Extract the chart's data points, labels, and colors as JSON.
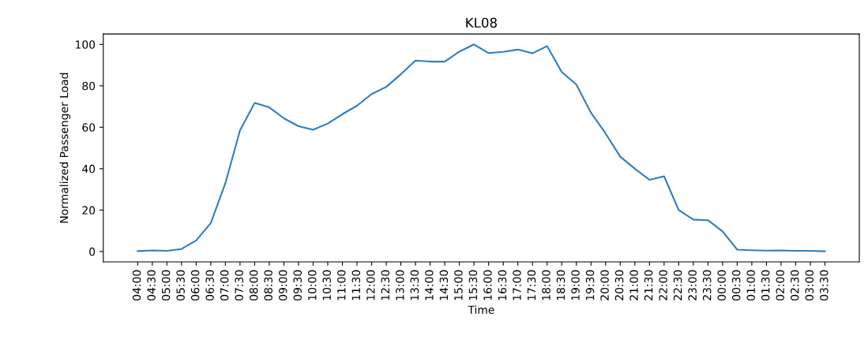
{
  "chart_data": {
    "type": "line",
    "title": "KL08",
    "xlabel": "Time",
    "ylabel": "Normalized Passenger Load",
    "categories": [
      "04:00",
      "04:30",
      "05:00",
      "05:30",
      "06:00",
      "06:30",
      "07:00",
      "07:30",
      "08:00",
      "08:30",
      "09:00",
      "09:30",
      "10:00",
      "10:30",
      "11:00",
      "11:30",
      "12:00",
      "12:30",
      "13:00",
      "13:30",
      "14:00",
      "14:30",
      "15:00",
      "15:30",
      "16:00",
      "16:30",
      "17:00",
      "17:30",
      "18:00",
      "18:30",
      "19:00",
      "19:30",
      "20:00",
      "20:30",
      "21:00",
      "21:30",
      "22:00",
      "22:30",
      "23:00",
      "23:30",
      "00:00",
      "00:30",
      "01:00",
      "01:30",
      "02:00",
      "02:30",
      "03:00",
      "03:30"
    ],
    "series": [
      {
        "color": "#2e7ebc",
        "values": [
          0.2,
          0.5,
          0.3,
          1.2,
          5.3,
          13.7,
          33,
          58.5,
          71.7,
          69.6,
          64.3,
          60.5,
          58.8,
          61.8,
          66.3,
          70.4,
          76,
          79.5,
          85.6,
          92.2,
          91.7,
          91.7,
          96.5,
          100,
          95.8,
          96.4,
          97.5,
          95.7,
          99.2,
          86.7,
          80.6,
          67,
          57,
          45.8,
          40,
          34.6,
          36.3,
          20,
          15.4,
          15.1,
          9.7,
          0.9,
          0.6,
          0.4,
          0.5,
          0.3,
          0.3,
          0.1
        ]
      }
    ],
    "ylim": [
      -5,
      105
    ],
    "yticks": [
      0,
      20,
      40,
      60,
      80,
      100
    ],
    "grid": false,
    "marker": "none",
    "line_style": "solid"
  }
}
